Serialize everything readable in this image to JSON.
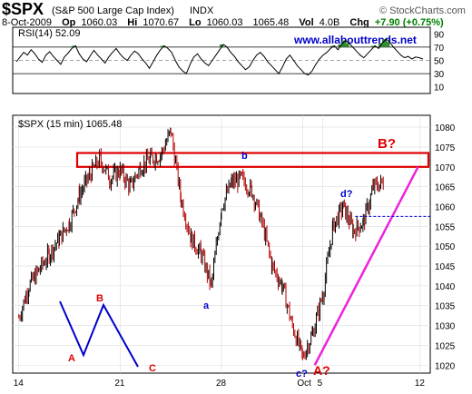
{
  "header": {
    "ticker": "$SPX",
    "name": "(S&P 500 Large Cap Index)",
    "exchange": "INDX",
    "brand": "© StockCharts.com",
    "date": "8-Oct-2009",
    "open_label": "Op",
    "open": "1060.03",
    "high_label": "Hi",
    "high": "1070.67",
    "low_label": "Lo",
    "low": "1060.03",
    "close": "1065.48",
    "vol_label": "Vol",
    "vol": "4.0B",
    "chg_label": "Chg",
    "chg": "+7.90 (+0.75%)",
    "chg_color": "#008000"
  },
  "rsi_panel": {
    "label": "RSI(14) 52.09",
    "website": "www.allabouttrends.net",
    "website_color": "#0000cc",
    "ticks": [
      "90",
      "70",
      "50",
      "30",
      "10"
    ]
  },
  "price_panel": {
    "label": "$SPX (15 min) 1065.48",
    "y_ticks": [
      "1080",
      "1075",
      "1070",
      "1065",
      "1060",
      "1055",
      "1050",
      "1045",
      "1040",
      "1035",
      "1030",
      "1025",
      "1020"
    ],
    "x_ticks": [
      "14",
      "21",
      "28",
      "Oct",
      "5",
      "12"
    ]
  },
  "annotations": {
    "b_small": "b",
    "d_q": "d?",
    "a_small": "a",
    "c_q": "c?",
    "A_q": "A?",
    "B_q": "B?",
    "legend_A": "A",
    "legend_B": "B",
    "legend_C": "C",
    "red": "#dd0000",
    "blue": "#0000cc",
    "magenta": "#ee22dd"
  },
  "chart_data": [
    {
      "type": "line",
      "title": "RSI(14) 52.09",
      "ylim": [
        0,
        100
      ],
      "reference_lines": [
        70,
        50,
        30
      ],
      "series": [
        {
          "name": "RSI(14)",
          "x": [
            0,
            3,
            6,
            9,
            12,
            15,
            18,
            21,
            24,
            27,
            30,
            33,
            36,
            39,
            42,
            45,
            48,
            51,
            54,
            57,
            60,
            63,
            66,
            69,
            72,
            75,
            78,
            81,
            84,
            87,
            90,
            93,
            96,
            99,
            102,
            105,
            108,
            111,
            114,
            117,
            120,
            123,
            126,
            129,
            132,
            135,
            138,
            141,
            144,
            147,
            150,
            153,
            156,
            159,
            162,
            165,
            168,
            171,
            174,
            177,
            180,
            183,
            186,
            189,
            192,
            195,
            198,
            201,
            204,
            207,
            210,
            213,
            216,
            219,
            222,
            225,
            228,
            231,
            234,
            237,
            240,
            243,
            246,
            249,
            252,
            255,
            258,
            261,
            264,
            267,
            270,
            273,
            276,
            279,
            282,
            285,
            288,
            291,
            294,
            297,
            300,
            303,
            306,
            309,
            312,
            315,
            318,
            321,
            324,
            327,
            330
          ],
          "values": [
            48,
            55,
            62,
            58,
            66,
            60,
            52,
            47,
            58,
            63,
            56,
            50,
            44,
            55,
            61,
            68,
            72,
            60,
            52,
            48,
            57,
            65,
            58,
            52,
            46,
            55,
            62,
            68,
            60,
            54,
            50,
            58,
            64,
            60,
            52,
            46,
            38,
            48,
            58,
            66,
            72,
            68,
            62,
            50,
            40,
            34,
            30,
            44,
            55,
            60,
            52,
            46,
            42,
            50,
            58,
            66,
            74,
            70,
            62,
            56,
            48,
            42,
            36,
            40,
            50,
            58,
            62,
            56,
            48,
            42,
            36,
            30,
            40,
            52,
            58,
            50,
            42,
            36,
            30,
            28,
            34,
            44,
            52,
            58,
            62,
            68,
            72,
            66,
            74,
            80,
            76,
            70,
            64,
            58,
            54,
            60,
            66,
            72,
            68,
            76,
            82,
            78,
            70,
            64,
            58,
            54,
            56,
            52,
            55,
            54,
            52
          ]
        }
      ]
    },
    {
      "type": "candlestick",
      "title": "$SPX (15 min) 1065.48",
      "ylim": [
        1018,
        1083
      ],
      "x_unit": "trading day (Sep 14 = 0)",
      "x_range": [
        -0.3,
        20.3
      ],
      "x_ticks": [
        {
          "label": "14",
          "x": 0
        },
        {
          "label": "21",
          "x": 5
        },
        {
          "label": "28",
          "x": 10
        },
        {
          "label": "Oct",
          "x": 14
        },
        {
          "label": "5",
          "x": 15
        },
        {
          "label": "12",
          "x": 19.8
        }
      ],
      "series": [
        {
          "name": "$SPX",
          "x": [
            0,
            0.5,
            1,
            1.5,
            2,
            2.5,
            3,
            3.5,
            4,
            4.5,
            5,
            5.5,
            6,
            6.5,
            7,
            7.5,
            8,
            8.5,
            9,
            9.5,
            10,
            10.5,
            11,
            11.5,
            12,
            12.5,
            13,
            13.5,
            14,
            14.5,
            15,
            15.5,
            16,
            16.5,
            17,
            17.5,
            18
          ],
          "values": [
            1032,
            1040,
            1044,
            1048,
            1052,
            1056,
            1063,
            1068,
            1072,
            1067,
            1069,
            1065,
            1070,
            1072,
            1073,
            1079,
            1062,
            1052,
            1048,
            1040,
            1060,
            1066,
            1067,
            1064,
            1056,
            1045,
            1040,
            1030,
            1022,
            1028,
            1038,
            1055,
            1060,
            1054,
            1056,
            1065,
            1066
          ]
        }
      ],
      "overlays": [
        {
          "type": "box",
          "name": "resistance-zone",
          "y": [
            1070,
            1073.5
          ]
        },
        {
          "type": "trendline",
          "name": "magenta-channel",
          "points": [
            [
              14.6,
              1020
            ],
            [
              19.7,
              1070
            ]
          ]
        },
        {
          "type": "hline-dashed",
          "name": "d-level",
          "y": 1057.5,
          "x": [
            16.6,
            20.3
          ]
        }
      ]
    }
  ]
}
